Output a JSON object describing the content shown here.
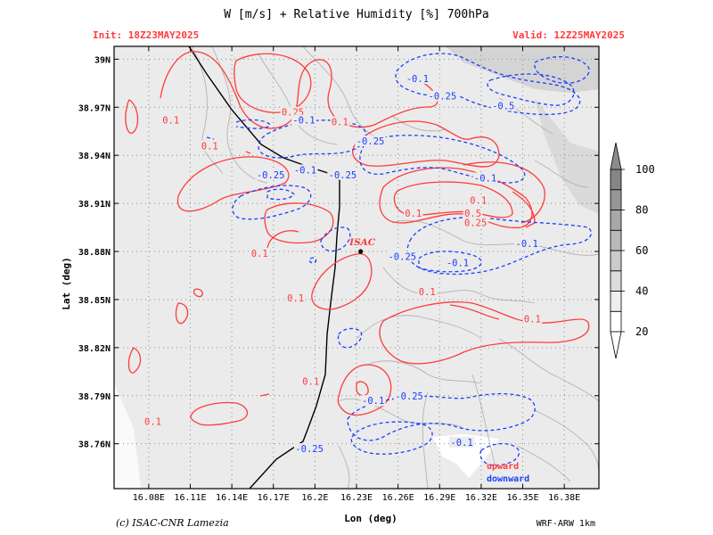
{
  "header": {
    "title": "W [m/s] + Relative Humidity [%] 700hPa",
    "init_label": "Init: 18Z23MAY2025",
    "valid_label": "Valid: 12Z25MAY2025"
  },
  "footer": {
    "credit": "(c) ISAC-CNR Lamezia",
    "model": "WRF-ARW 1km"
  },
  "colors": {
    "upward": "#ff3b3b",
    "downward": "#1a3fff",
    "map_line": "#000000",
    "topo": "#b0b0b0",
    "grid": "#9a9a9a",
    "header_text": "#ff3b3b"
  },
  "chart_data": {
    "type": "contour",
    "xlabel": "Lon (deg)",
    "ylabel": "Lat (deg)",
    "xlim": [
      16.055,
      16.405
    ],
    "ylim": [
      38.732,
      39.008
    ],
    "x_ticks": [
      {
        "value": 16.08,
        "label": "16.08E"
      },
      {
        "value": 16.11,
        "label": "16.11E"
      },
      {
        "value": 16.14,
        "label": "16.14E"
      },
      {
        "value": 16.17,
        "label": "16.17E"
      },
      {
        "value": 16.2,
        "label": "16.2E"
      },
      {
        "value": 16.23,
        "label": "16.23E"
      },
      {
        "value": 16.26,
        "label": "16.26E"
      },
      {
        "value": 16.29,
        "label": "16.29E"
      },
      {
        "value": 16.32,
        "label": "16.32E"
      },
      {
        "value": 16.35,
        "label": "16.35E"
      },
      {
        "value": 16.38,
        "label": "16.38E"
      }
    ],
    "y_ticks": [
      {
        "value": 39.0,
        "label": "39N"
      },
      {
        "value": 38.97,
        "label": "38.97N"
      },
      {
        "value": 38.94,
        "label": "38.94N"
      },
      {
        "value": 38.91,
        "label": "38.91N"
      },
      {
        "value": 38.88,
        "label": "38.88N"
      },
      {
        "value": 38.85,
        "label": "38.85N"
      },
      {
        "value": 38.82,
        "label": "38.82N"
      },
      {
        "value": 38.79,
        "label": "38.79N"
      },
      {
        "value": 38.76,
        "label": "38.76N"
      }
    ],
    "grid": true,
    "colorbar": {
      "variable": "Relative Humidity",
      "levels": [
        20,
        30,
        40,
        50,
        60,
        70,
        80,
        90,
        100
      ],
      "tick_labels": [
        "20",
        "40",
        "60",
        "80",
        "100"
      ],
      "placement": "right"
    },
    "station": {
      "name": "ISAC",
      "lon": 16.233,
      "lat": 38.88
    },
    "contour_labels": [
      {
        "text": "0.1",
        "lon": 16.096,
        "lat": 38.962,
        "series": "upward"
      },
      {
        "text": "0.1",
        "lon": 16.124,
        "lat": 38.946,
        "series": "upward"
      },
      {
        "text": "0.25",
        "lon": 16.184,
        "lat": 38.967,
        "series": "upward"
      },
      {
        "text": "0.1",
        "lon": 16.218,
        "lat": 38.961,
        "series": "upward"
      },
      {
        "text": "0.1",
        "lon": 16.318,
        "lat": 38.912,
        "series": "upward"
      },
      {
        "text": "0.1",
        "lon": 16.271,
        "lat": 38.904,
        "series": "upward"
      },
      {
        "text": "0.5",
        "lon": 16.314,
        "lat": 38.904,
        "series": "upward"
      },
      {
        "text": "0.25",
        "lon": 16.316,
        "lat": 38.898,
        "series": "upward"
      },
      {
        "text": "0.1",
        "lon": 16.16,
        "lat": 38.879,
        "series": "upward"
      },
      {
        "text": "0.1",
        "lon": 16.186,
        "lat": 38.851,
        "series": "upward"
      },
      {
        "text": "0.1",
        "lon": 16.281,
        "lat": 38.855,
        "series": "upward"
      },
      {
        "text": "0.1",
        "lon": 16.357,
        "lat": 38.838,
        "series": "upward"
      },
      {
        "text": "0.1",
        "lon": 16.197,
        "lat": 38.799,
        "series": "upward"
      },
      {
        "text": "0.1",
        "lon": 16.083,
        "lat": 38.774,
        "series": "upward"
      },
      {
        "text": "-0.1",
        "lon": 16.274,
        "lat": 38.988,
        "series": "downward"
      },
      {
        "text": "-0.25",
        "lon": 16.292,
        "lat": 38.977,
        "series": "downward"
      },
      {
        "text": "-0.5",
        "lon": 16.336,
        "lat": 38.971,
        "series": "downward"
      },
      {
        "text": "-0.1",
        "lon": 16.192,
        "lat": 38.962,
        "series": "downward"
      },
      {
        "text": "-0.25",
        "lon": 16.24,
        "lat": 38.949,
        "series": "downward"
      },
      {
        "text": "-0.25",
        "lon": 16.168,
        "lat": 38.928,
        "series": "downward"
      },
      {
        "text": "-0.1",
        "lon": 16.193,
        "lat": 38.931,
        "series": "downward"
      },
      {
        "text": "-0.25",
        "lon": 16.22,
        "lat": 38.928,
        "series": "downward"
      },
      {
        "text": "-0.1",
        "lon": 16.323,
        "lat": 38.926,
        "series": "downward"
      },
      {
        "text": "-0.1",
        "lon": 16.353,
        "lat": 38.885,
        "series": "downward"
      },
      {
        "text": "-0.25",
        "lon": 16.263,
        "lat": 38.877,
        "series": "downward"
      },
      {
        "text": "-0.1",
        "lon": 16.303,
        "lat": 38.873,
        "series": "downward"
      },
      {
        "text": "-0.25",
        "lon": 16.268,
        "lat": 38.79,
        "series": "downward"
      },
      {
        "text": "-0.1",
        "lon": 16.242,
        "lat": 38.787,
        "series": "downward"
      },
      {
        "text": "-0.25",
        "lon": 16.196,
        "lat": 38.757,
        "series": "downward"
      },
      {
        "text": "-0.1",
        "lon": 16.306,
        "lat": 38.761,
        "series": "downward"
      }
    ],
    "legend": [
      {
        "name": "upward",
        "color": "#ff3b3b"
      },
      {
        "name": "downward",
        "color": "#1a3fff"
      }
    ],
    "legend_placement": "bottom-right"
  }
}
